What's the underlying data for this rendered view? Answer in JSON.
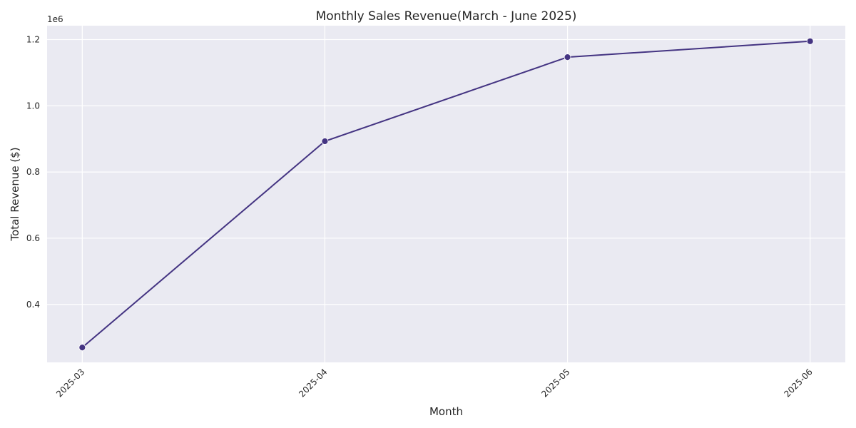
{
  "chart_data": {
    "type": "line",
    "title": "Monthly Sales Revenue(March - June 2025)",
    "xlabel": "Month",
    "ylabel": "Total Revenue ($)",
    "y_offset_label": "1e6",
    "categories": [
      "2025-03",
      "2025-04",
      "2025-05",
      "2025-06"
    ],
    "series": [
      {
        "values": [
          0.27,
          0.893,
          1.147,
          1.195
        ]
      }
    ],
    "ylim": [
      0.225,
      1.242
    ],
    "yticks": [
      0.4,
      0.6,
      0.8,
      1.0,
      1.2
    ],
    "ytick_labels": [
      "0.4",
      "0.6",
      "0.8",
      "1.0",
      "1.2"
    ],
    "grid": true,
    "colors": {
      "line": "#443482",
      "plot_background": "#eaeaf2",
      "grid": "#ffffff"
    }
  }
}
